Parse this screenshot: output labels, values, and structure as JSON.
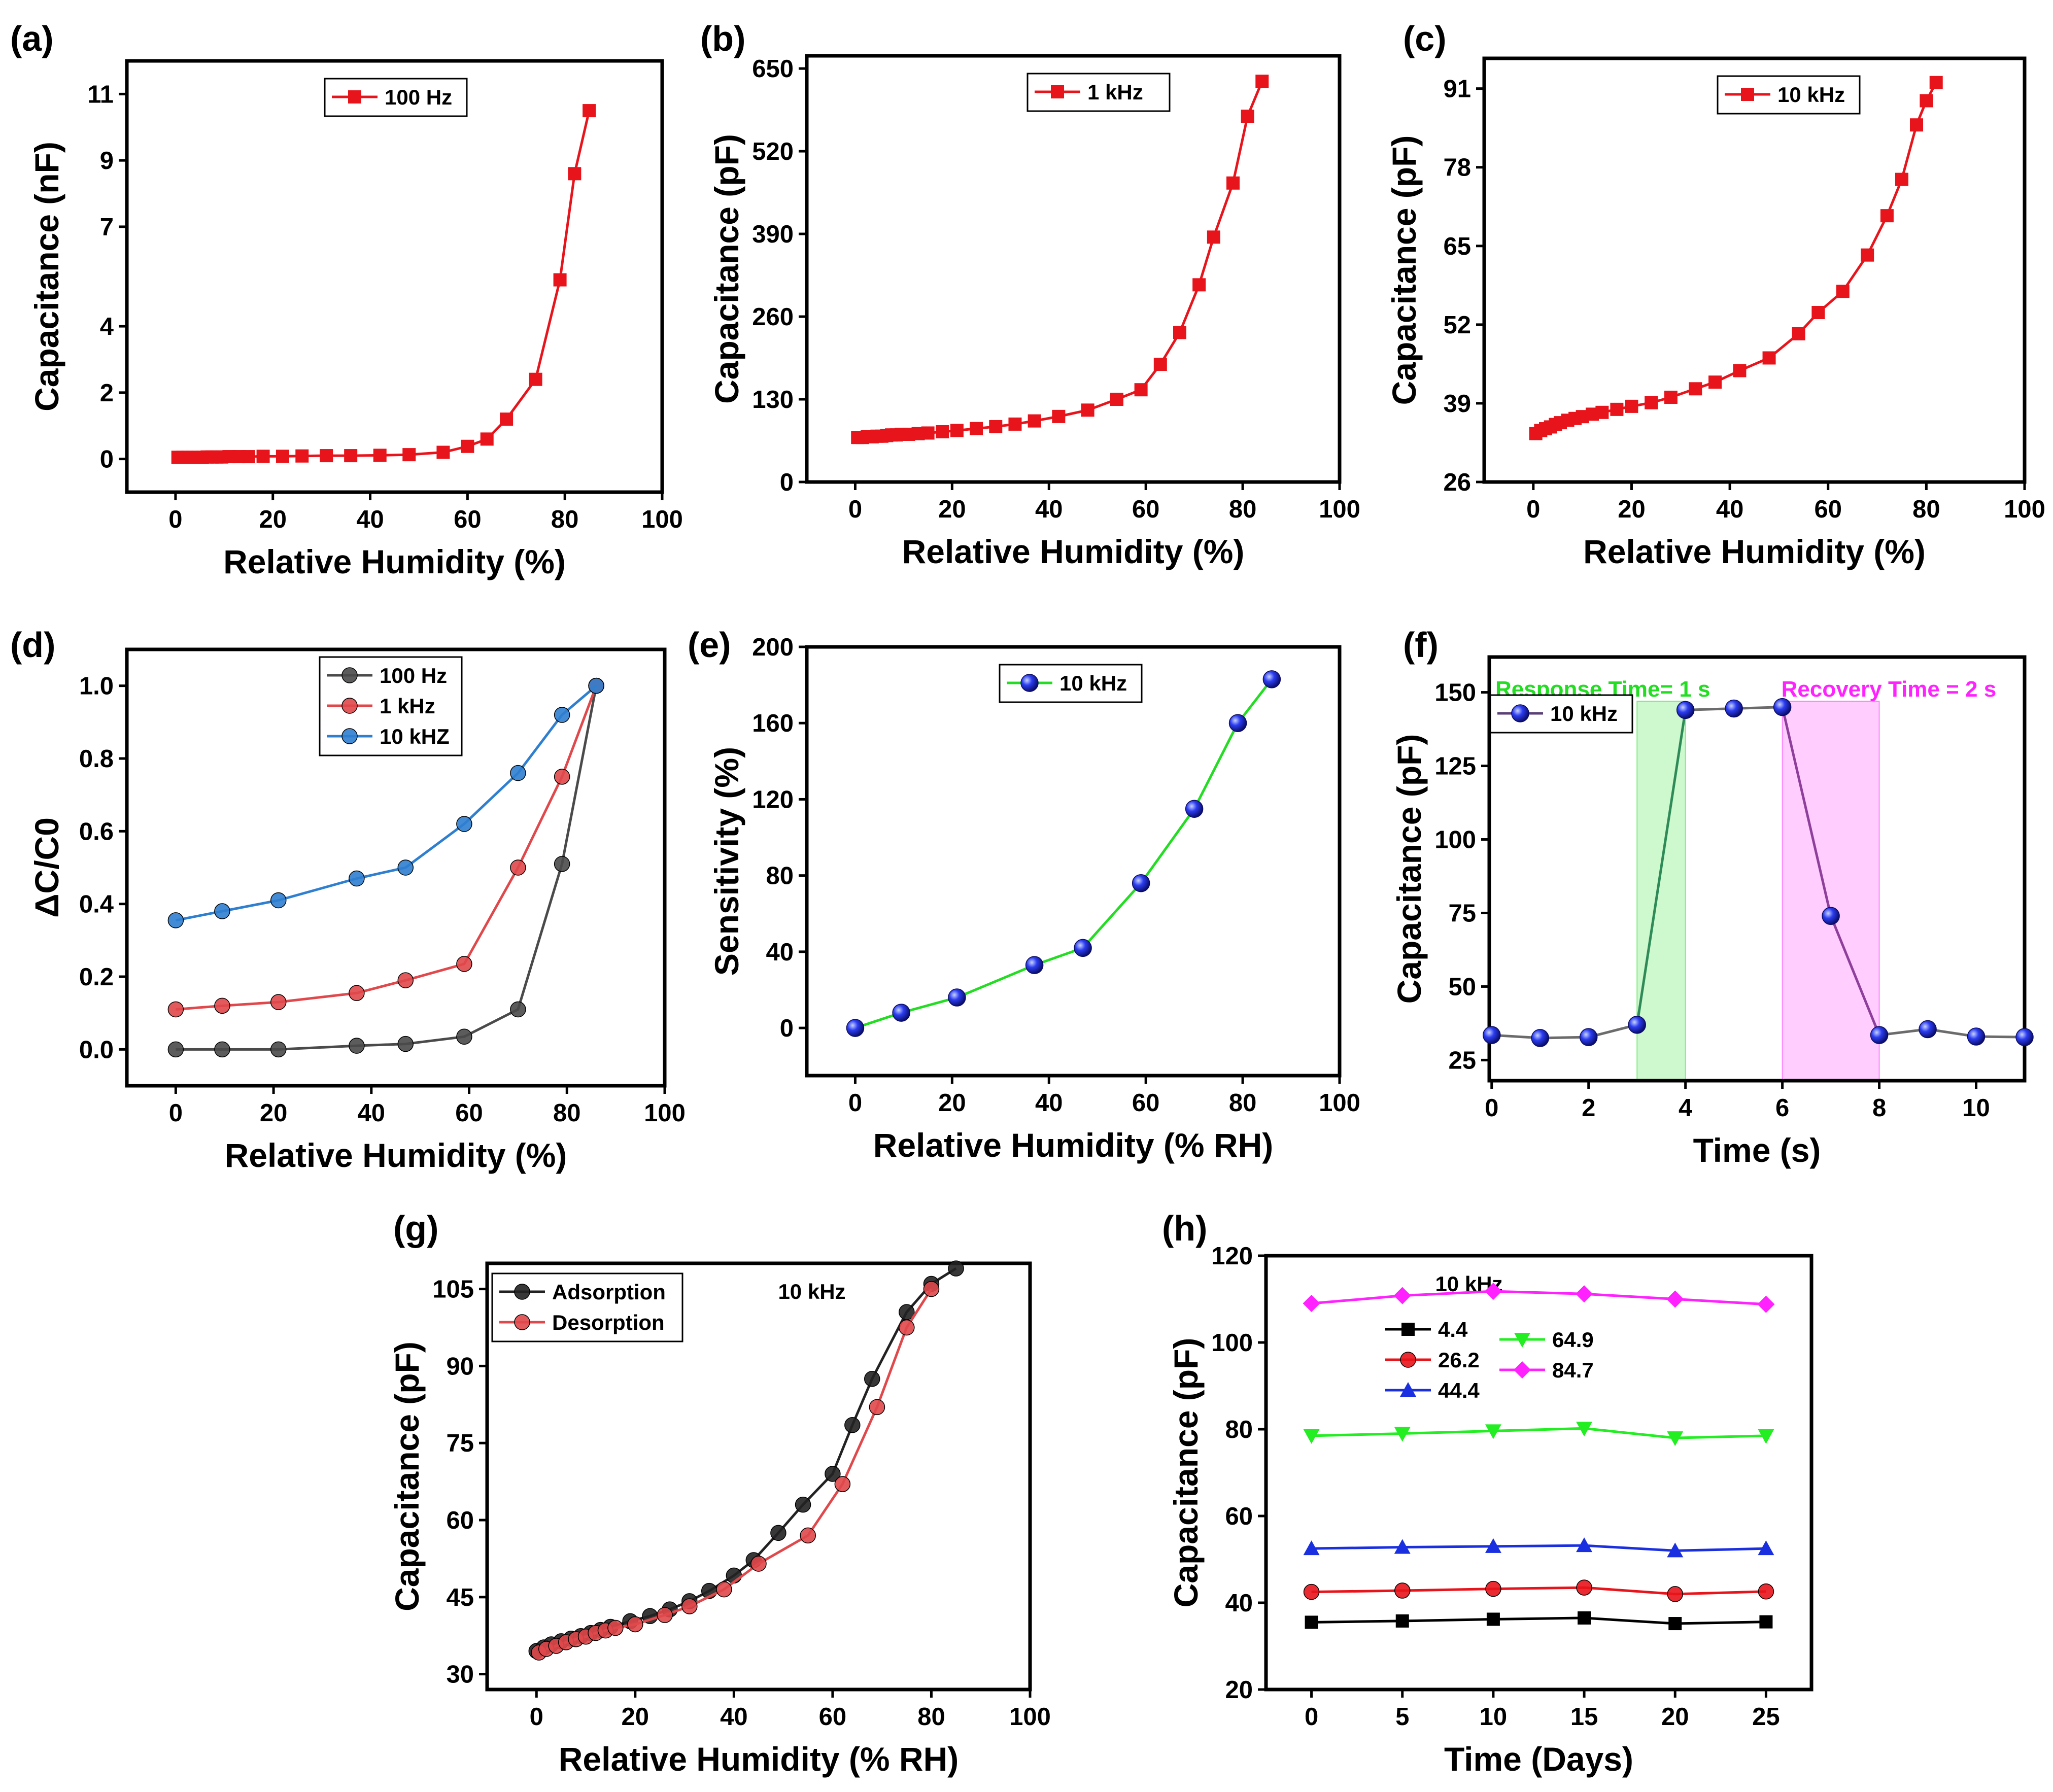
{
  "chart_data": [
    {
      "id": "a",
      "type": "line",
      "panel_label": "(a)",
      "xlabel": "Relative Humidity (%)",
      "ylabel": "Capacitance (nF)",
      "xlim": [
        -10,
        100
      ],
      "ylim": [
        -1,
        12
      ],
      "xticks": [
        0,
        20,
        40,
        60,
        80,
        100
      ],
      "yticks": [
        0,
        2,
        4,
        7,
        9,
        11
      ],
      "legend_position": "top-center",
      "series": [
        {
          "name": "100 Hz",
          "color": "#e8141b",
          "marker": "square",
          "x": [
            0.5,
            1.5,
            2.5,
            3.5,
            4.5,
            5.5,
            6.5,
            7.5,
            8.5,
            9.5,
            11,
            13,
            15,
            18,
            22,
            26,
            31,
            36,
            42,
            48,
            55,
            60,
            64,
            68,
            74,
            79,
            82,
            85
          ],
          "y": [
            0.05,
            0.05,
            0.05,
            0.05,
            0.05,
            0.05,
            0.06,
            0.06,
            0.06,
            0.06,
            0.07,
            0.07,
            0.07,
            0.08,
            0.08,
            0.09,
            0.1,
            0.1,
            0.11,
            0.13,
            0.2,
            0.38,
            0.6,
            1.2,
            2.4,
            5.4,
            8.6,
            10.5
          ]
        }
      ]
    },
    {
      "id": "b",
      "type": "line",
      "panel_label": "(b)",
      "xlabel": "Relative Humidity (%)",
      "ylabel": "Capacitance (pF)",
      "xlim": [
        -10,
        100
      ],
      "ylim": [
        0,
        670
      ],
      "xticks": [
        0,
        20,
        40,
        60,
        80,
        100
      ],
      "yticks": [
        0,
        130,
        260,
        390,
        520,
        650
      ],
      "legend_position": "top-center",
      "series": [
        {
          "name": "1 kHz",
          "color": "#e8141b",
          "marker": "square",
          "x": [
            0.5,
            1.5,
            2.5,
            3.5,
            4.5,
            5.5,
            6.5,
            7.5,
            8.5,
            9.5,
            11,
            13,
            15,
            18,
            21,
            25,
            29,
            33,
            37,
            42,
            48,
            54,
            59,
            63,
            67,
            71,
            74,
            78,
            81,
            84
          ],
          "y": [
            70,
            70,
            71,
            71,
            72,
            72,
            73,
            74,
            74,
            75,
            75,
            76,
            77,
            79,
            81,
            84,
            87,
            91,
            96,
            103,
            113,
            130,
            145,
            185,
            235,
            310,
            385,
            470,
            575,
            630
          ]
        }
      ]
    },
    {
      "id": "c",
      "type": "line",
      "panel_label": "(c)",
      "xlabel": "Relative Humidity (%)",
      "ylabel": "Capacitance (pF)",
      "xlim": [
        -10,
        100
      ],
      "ylim": [
        26,
        96
      ],
      "xticks": [
        0,
        20,
        40,
        60,
        80,
        100
      ],
      "yticks": [
        26,
        39,
        52,
        65,
        78,
        91
      ],
      "legend_position": "top-center",
      "series": [
        {
          "name": "10 kHz",
          "color": "#e8141b",
          "marker": "square",
          "x": [
            0.5,
            1.5,
            2.5,
            3.5,
            4.5,
            5.5,
            7,
            8.5,
            10,
            12,
            14,
            17,
            20,
            24,
            28,
            33,
            37,
            42,
            48,
            54,
            58,
            63,
            68,
            72,
            75,
            78,
            80,
            82
          ],
          "y": [
            34,
            34.5,
            34.8,
            35.1,
            35.5,
            35.8,
            36.2,
            36.5,
            36.8,
            37.2,
            37.5,
            38.0,
            38.5,
            39.1,
            40.0,
            41.4,
            42.5,
            44.4,
            46.5,
            50.5,
            54,
            57.5,
            63.5,
            70,
            76,
            85,
            89,
            92
          ]
        }
      ]
    },
    {
      "id": "d",
      "type": "line",
      "panel_label": "(d)",
      "xlabel": "Relative Humidity (%)",
      "ylabel": "ΔC/C0",
      "xlim": [
        -10,
        100
      ],
      "ylim": [
        -0.1,
        1.1
      ],
      "xticks": [
        0,
        20,
        40,
        60,
        80,
        100
      ],
      "yticks": [
        0.0,
        0.2,
        0.4,
        0.6,
        0.8,
        1.0
      ],
      "legend_position": "top-center",
      "series": [
        {
          "name": "100 Hz",
          "color": "#4a4a4a",
          "marker": "circle",
          "x": [
            0,
            9.5,
            21,
            37,
            47,
            59,
            70,
            79,
            86
          ],
          "y": [
            0.0,
            0.0,
            0.0,
            0.01,
            0.015,
            0.035,
            0.11,
            0.51,
            1.0
          ]
        },
        {
          "name": "1 kHz",
          "color": "#e0484b",
          "marker": "circle",
          "x": [
            0,
            9.5,
            21,
            37,
            47,
            59,
            70,
            79,
            86
          ],
          "y": [
            0.11,
            0.12,
            0.13,
            0.155,
            0.19,
            0.235,
            0.5,
            0.75,
            1.0
          ]
        },
        {
          "name": "10 kHZ",
          "color": "#2f7fd0",
          "marker": "circle",
          "x": [
            0,
            9.5,
            21,
            37,
            47,
            59,
            70,
            79,
            86
          ],
          "y": [
            0.355,
            0.38,
            0.41,
            0.47,
            0.5,
            0.62,
            0.76,
            0.92,
            1.0
          ]
        }
      ]
    },
    {
      "id": "e",
      "type": "line",
      "panel_label": "(e)",
      "xlabel": "Relative Humidity (% RH)",
      "ylabel": "Sensitivity (%)",
      "xlim": [
        -10,
        100
      ],
      "ylim": [
        -25,
        200
      ],
      "xticks": [
        0,
        20,
        40,
        60,
        80,
        100
      ],
      "yticks": [
        0,
        40,
        80,
        120,
        160,
        200
      ],
      "legend_position": "top-center",
      "series": [
        {
          "name": "10 kHz",
          "color": "#22dd22",
          "marker": "sphere",
          "marker_color": "#1a2fe0",
          "x": [
            0,
            9.5,
            21,
            37,
            47,
            59,
            70,
            79,
            86
          ],
          "y": [
            0,
            8,
            16,
            33,
            42,
            76,
            115,
            160,
            183
          ]
        }
      ]
    },
    {
      "id": "f",
      "type": "line",
      "panel_label": "(f)",
      "xlabel": "Time (s)",
      "ylabel": "Capacitance (pF)",
      "xlim": [
        -0.05,
        11
      ],
      "ylim": [
        18,
        162
      ],
      "xticks": [
        0,
        2,
        4,
        6,
        8,
        10
      ],
      "yticks": [
        25,
        50,
        75,
        100,
        125,
        150
      ],
      "legend_position": "upper-left",
      "annotations": [
        {
          "text": "Response Time= 1 s",
          "color": "#22dd22",
          "x_from": 3,
          "x_to": 4
        },
        {
          "text": "Recovery Time = 2 s",
          "color": "#ff22ff",
          "x_from": 6,
          "x_to": 8
        }
      ],
      "series": [
        {
          "name": "10 kHz",
          "color": "#5b3f77",
          "marker": "sphere",
          "marker_color": "#1a2fe0",
          "x": [
            0,
            1,
            2,
            3,
            4,
            5,
            6,
            7,
            8,
            9,
            10,
            11
          ],
          "y": [
            33.5,
            32.5,
            32.8,
            37,
            144,
            144.5,
            145,
            74,
            33.5,
            35.5,
            33,
            32.8
          ],
          "segment_colors": [
            "#6b6b6b",
            "#6b6b6b",
            "#6b6b6b",
            "#2e8b57",
            "#6b6b6b",
            "#6b6b6b",
            "#8e3f9b",
            "#8e3f9b",
            "#6b6b6b",
            "#6b6b6b",
            "#6b6b6b"
          ]
        }
      ]
    },
    {
      "id": "g",
      "type": "line",
      "panel_label": "(g)",
      "title": "10 kHz",
      "xlabel": "Relative Humidity (% RH)",
      "ylabel": "Capacitance (pF)",
      "xlim": [
        -10,
        100
      ],
      "ylim": [
        27,
        110
      ],
      "xticks": [
        0,
        20,
        40,
        60,
        80,
        100
      ],
      "yticks": [
        30,
        45,
        60,
        75,
        90,
        105
      ],
      "legend_position": "top-left",
      "series": [
        {
          "name": "Adsorption",
          "color": "#222222",
          "marker": "circle",
          "x": [
            0,
            1.5,
            3,
            5,
            7,
            9,
            11,
            13,
            15,
            19,
            23,
            27,
            31,
            35,
            40,
            44,
            49,
            54,
            60,
            64,
            68,
            75,
            80,
            85
          ],
          "y": [
            34.5,
            35.2,
            35.8,
            36.4,
            36.9,
            37.4,
            38.0,
            38.6,
            39.2,
            40.3,
            41.3,
            42.6,
            44.2,
            46.2,
            49.2,
            52.2,
            57.5,
            63,
            69,
            78.5,
            87.5,
            100.5,
            106,
            109
          ]
        },
        {
          "name": "Desorption",
          "color": "#e0484b",
          "marker": "circle",
          "x": [
            0.5,
            2,
            4,
            6,
            8,
            10,
            12,
            14,
            16,
            20,
            26,
            31,
            38,
            45,
            55,
            62,
            69,
            75,
            80
          ],
          "y": [
            34.2,
            34.9,
            35.5,
            36.2,
            36.8,
            37.3,
            38.0,
            38.5,
            39.0,
            39.7,
            41.5,
            43.2,
            46.5,
            51.5,
            57,
            67,
            82,
            97.5,
            105
          ]
        }
      ]
    },
    {
      "id": "h",
      "type": "line",
      "panel_label": "(h)",
      "title": "10 kHz",
      "xlabel": "Time (Days)",
      "ylabel": "Capacitance (pF)",
      "xlim": [
        -2.5,
        27.5
      ],
      "ylim": [
        20,
        120
      ],
      "xticks": [
        0,
        5,
        10,
        15,
        20,
        25
      ],
      "yticks": [
        20,
        40,
        60,
        80,
        100,
        120
      ],
      "legend_position": "upper-left",
      "series": [
        {
          "name": "4.4",
          "color": "#000000",
          "marker": "square",
          "x": [
            0,
            5,
            10,
            15,
            20,
            25
          ],
          "y": [
            35.5,
            35.8,
            36.2,
            36.5,
            35.2,
            35.6
          ]
        },
        {
          "name": "26.2",
          "color": "#e8141b",
          "marker": "circle",
          "x": [
            0,
            5,
            10,
            15,
            20,
            25
          ],
          "y": [
            42.5,
            42.8,
            43.2,
            43.5,
            42.0,
            42.6
          ]
        },
        {
          "name": "44.4",
          "color": "#1a2fe0",
          "marker": "triangle-up",
          "x": [
            0,
            5,
            10,
            15,
            20,
            25
          ],
          "y": [
            52.5,
            52.8,
            53.0,
            53.2,
            52.0,
            52.5
          ]
        },
        {
          "name": "64.9",
          "color": "#22ee22",
          "marker": "triangle-down",
          "x": [
            0,
            5,
            10,
            15,
            20,
            25
          ],
          "y": [
            78.5,
            79.0,
            79.6,
            80.2,
            78.0,
            78.5
          ]
        },
        {
          "name": "84.7",
          "color": "#ff22ff",
          "marker": "diamond",
          "x": [
            0,
            5,
            10,
            15,
            20,
            25
          ],
          "y": [
            109,
            110.8,
            111.8,
            111.2,
            110.0,
            108.8
          ]
        }
      ]
    }
  ]
}
